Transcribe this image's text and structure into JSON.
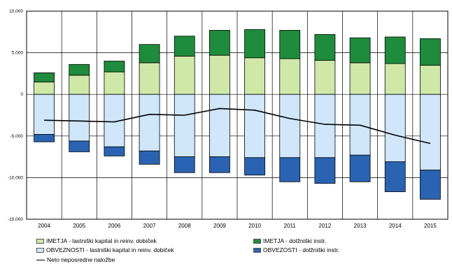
{
  "chart_data": {
    "type": "bar",
    "stacked": true,
    "categories": [
      "2004",
      "2005",
      "2006",
      "2007",
      "2008",
      "2009",
      "2010",
      "2011",
      "2012",
      "2013",
      "2014",
      "2015"
    ],
    "ylim": [
      -15000,
      10000
    ],
    "yticks": [
      10000,
      5000,
      0,
      -5000,
      -10000,
      -15000
    ],
    "ytick_labels": [
      "10.000",
      "5.000",
      "0",
      "-5.000",
      "-10.000",
      "-15.000"
    ],
    "grid": true,
    "legend_position": "bottom",
    "series": [
      {
        "name": "IMETJA - lastniški kapital in reinv. dobiček",
        "color": "#cfe8a8",
        "values": [
          1500,
          2300,
          2700,
          3800,
          4600,
          4700,
          4400,
          4300,
          4100,
          3800,
          3700,
          3500
        ]
      },
      {
        "name": "IMETJA - dolžniški instr.",
        "color": "#1e8c3c",
        "values": [
          1100,
          1300,
          1300,
          2200,
          2400,
          3000,
          3400,
          3400,
          3100,
          3000,
          3200,
          3200
        ]
      },
      {
        "name": "OBVEZNOSTI - lastniški kapital in reinv. dobiček",
        "color": "#cfe6fb",
        "values": [
          -4800,
          -5600,
          -6300,
          -6800,
          -7500,
          -7500,
          -7600,
          -7600,
          -7600,
          -7300,
          -8100,
          -9100
        ]
      },
      {
        "name": "OBVEZOSTI - dolžniški instr.",
        "color": "#2a63b2",
        "values": [
          -900,
          -1300,
          -1100,
          -1600,
          -1900,
          -1900,
          -2100,
          -2900,
          -3100,
          -3200,
          -3600,
          -3500
        ]
      }
    ],
    "line": {
      "name": "Neto neposredne naložbe",
      "color": "#000000",
      "values": [
        -3100,
        -3200,
        -3300,
        -2400,
        -2500,
        -1700,
        -1900,
        -2900,
        -3600,
        -3700,
        -4900,
        -5900
      ]
    }
  }
}
